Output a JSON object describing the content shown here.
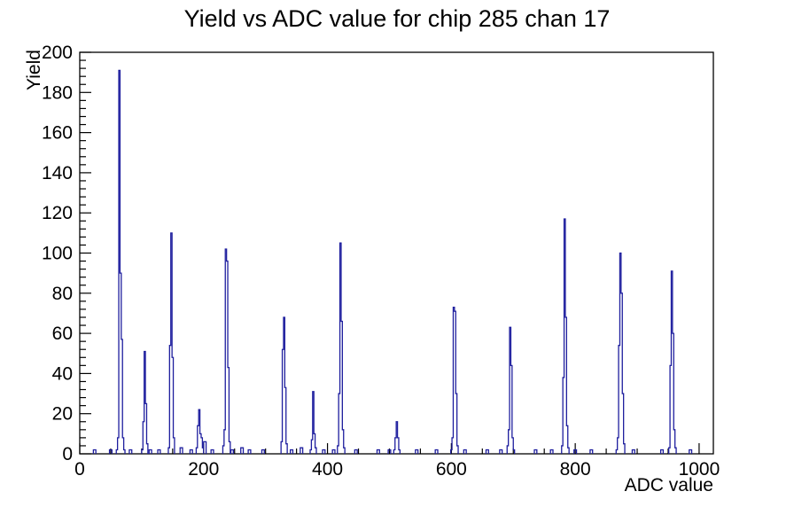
{
  "page_title": "Yield vs ADC value for chip 285 chan 17",
  "chart_data": {
    "type": "histogram",
    "title": "Yield vs ADC value for chip 285 chan 17",
    "xlabel": "ADC value",
    "ylabel": "Yield",
    "xlim": [
      0,
      1023
    ],
    "ylim": [
      0,
      200
    ],
    "x_ticks": [
      0,
      200,
      400,
      600,
      800,
      1000
    ],
    "x_minor_step": 50,
    "y_ticks": [
      0,
      20,
      40,
      60,
      80,
      100,
      120,
      140,
      160,
      180,
      200
    ],
    "y_minor_step": 4,
    "grid": false,
    "legend": false,
    "bin_width": 2,
    "line_color": "#1e1e9e",
    "frame_color": "#000000",
    "background_color": "#ffffff",
    "peaks_summary": [
      {
        "adc": 64,
        "yield": 191
      },
      {
        "adc": 105,
        "yield": 51
      },
      {
        "adc": 148,
        "yield": 110
      },
      {
        "adc": 193,
        "yield": 22
      },
      {
        "adc": 236,
        "yield": 102
      },
      {
        "adc": 330,
        "yield": 68
      },
      {
        "adc": 377,
        "yield": 31
      },
      {
        "adc": 421,
        "yield": 105
      },
      {
        "adc": 512,
        "yield": 16
      },
      {
        "adc": 604,
        "yield": 73
      },
      {
        "adc": 695,
        "yield": 63
      },
      {
        "adc": 783,
        "yield": 117
      },
      {
        "adc": 873,
        "yield": 100
      },
      {
        "adc": 956,
        "yield": 91
      }
    ],
    "clusters": [
      [
        [
          60,
          2
        ],
        [
          62,
          8
        ],
        [
          64,
          191
        ],
        [
          66,
          90
        ],
        [
          68,
          57
        ],
        [
          70,
          8
        ],
        [
          72,
          2
        ]
      ],
      [
        [
          101,
          2
        ],
        [
          103,
          16
        ],
        [
          105,
          51
        ],
        [
          107,
          25
        ],
        [
          109,
          5
        ]
      ],
      [
        [
          144,
          3
        ],
        [
          146,
          54
        ],
        [
          148,
          110
        ],
        [
          150,
          48
        ],
        [
          152,
          8
        ]
      ],
      [
        [
          189,
          3
        ],
        [
          191,
          14
        ],
        [
          193,
          22
        ],
        [
          195,
          10
        ],
        [
          197,
          8
        ],
        [
          199,
          3
        ]
      ],
      [
        [
          232,
          4
        ],
        [
          234,
          12
        ],
        [
          236,
          102
        ],
        [
          238,
          96
        ],
        [
          240,
          43
        ],
        [
          242,
          6
        ]
      ],
      [
        [
          326,
          6
        ],
        [
          328,
          52
        ],
        [
          330,
          68
        ],
        [
          332,
          33
        ],
        [
          334,
          5
        ]
      ],
      [
        [
          373,
          2
        ],
        [
          375,
          7
        ],
        [
          377,
          31
        ],
        [
          379,
          10
        ],
        [
          381,
          3
        ]
      ],
      [
        [
          417,
          4
        ],
        [
          419,
          30
        ],
        [
          421,
          105
        ],
        [
          423,
          66
        ],
        [
          425,
          12
        ],
        [
          427,
          3
        ]
      ],
      [
        [
          508,
          2
        ],
        [
          510,
          8
        ],
        [
          512,
          16
        ],
        [
          514,
          8
        ],
        [
          516,
          2
        ]
      ],
      [
        [
          600,
          2
        ],
        [
          602,
          8
        ],
        [
          604,
          73
        ],
        [
          606,
          71
        ],
        [
          608,
          30
        ],
        [
          610,
          4
        ]
      ],
      [
        [
          691,
          4
        ],
        [
          693,
          12
        ],
        [
          695,
          63
        ],
        [
          697,
          44
        ],
        [
          699,
          8
        ],
        [
          701,
          2
        ]
      ],
      [
        [
          779,
          4
        ],
        [
          781,
          38
        ],
        [
          783,
          117
        ],
        [
          785,
          68
        ],
        [
          787,
          14
        ],
        [
          789,
          3
        ]
      ],
      [
        [
          867,
          2
        ],
        [
          869,
          8
        ],
        [
          871,
          54
        ],
        [
          873,
          100
        ],
        [
          875,
          80
        ],
        [
          877,
          30
        ],
        [
          879,
          5
        ]
      ],
      [
        [
          952,
          3
        ],
        [
          954,
          44
        ],
        [
          956,
          91
        ],
        [
          958,
          60
        ],
        [
          960,
          12
        ],
        [
          962,
          3
        ]
      ]
    ],
    "baseline_blips": [
      [
        24,
        2
      ],
      [
        50,
        2
      ],
      [
        82,
        2
      ],
      [
        114,
        2
      ],
      [
        128,
        2
      ],
      [
        164,
        3
      ],
      [
        180,
        2
      ],
      [
        202,
        6
      ],
      [
        214,
        2
      ],
      [
        246,
        2
      ],
      [
        262,
        3
      ],
      [
        274,
        2
      ],
      [
        296,
        2
      ],
      [
        342,
        2
      ],
      [
        358,
        3
      ],
      [
        394,
        2
      ],
      [
        410,
        2
      ],
      [
        446,
        2
      ],
      [
        482,
        2
      ],
      [
        500,
        2
      ],
      [
        544,
        2
      ],
      [
        576,
        2
      ],
      [
        622,
        2
      ],
      [
        658,
        2
      ],
      [
        680,
        2
      ],
      [
        736,
        2
      ],
      [
        762,
        2
      ],
      [
        800,
        2
      ],
      [
        826,
        2
      ],
      [
        894,
        2
      ],
      [
        940,
        2
      ],
      [
        986,
        2
      ]
    ]
  }
}
